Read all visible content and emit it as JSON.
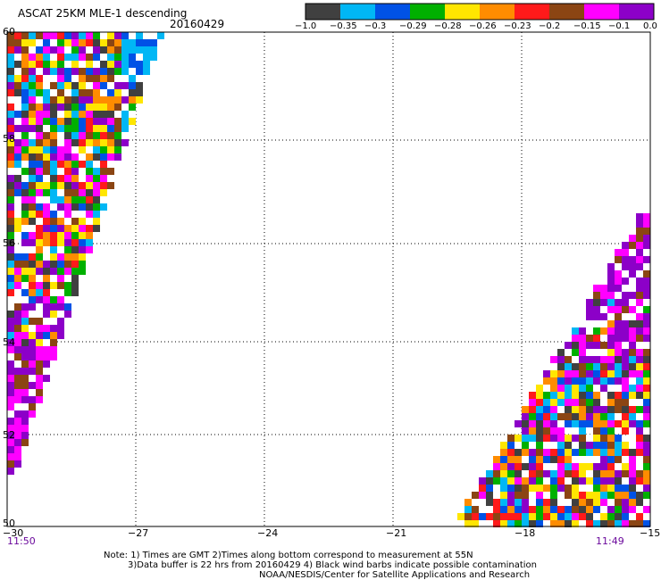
{
  "header": {
    "title": "ASCAT 25KM MLE-1 descending",
    "date": "20160429"
  },
  "colorbar": {
    "labels": [
      "−1.0",
      "−0.35",
      "−0.3",
      "−0.29",
      "−0.28",
      "−0.26",
      "−0.23",
      "−0.2",
      "−0.15",
      "−0.1",
      "0.0"
    ],
    "colors": [
      "#404040",
      "#00b7f5",
      "#0052e6",
      "#00b000",
      "#ffe600",
      "#ff8c00",
      "#ff1a1a",
      "#8b4513",
      "#ff00ff",
      "#8c00c8"
    ]
  },
  "map": {
    "lon_ticks": [
      "−30",
      "−27",
      "−24",
      "−21",
      "−18",
      "−15"
    ],
    "lat_ticks": [
      "60",
      "58",
      "56",
      "54",
      "52",
      "50"
    ],
    "lon_range": [
      -30,
      -15
    ],
    "lat_range": [
      50,
      60
    ],
    "start_time": "11:50",
    "end_time": "11:49"
  },
  "notes": [
    "Note: 1) Times are GMT 2)Times along bottom correspond to measurement at 55N",
    "3)Data buffer is 22 hrs from 20160429 4) Black wind barbs indicate possible contamination",
    "NOAA/NESDIS/Center for Satellite Applications and Research"
  ]
}
